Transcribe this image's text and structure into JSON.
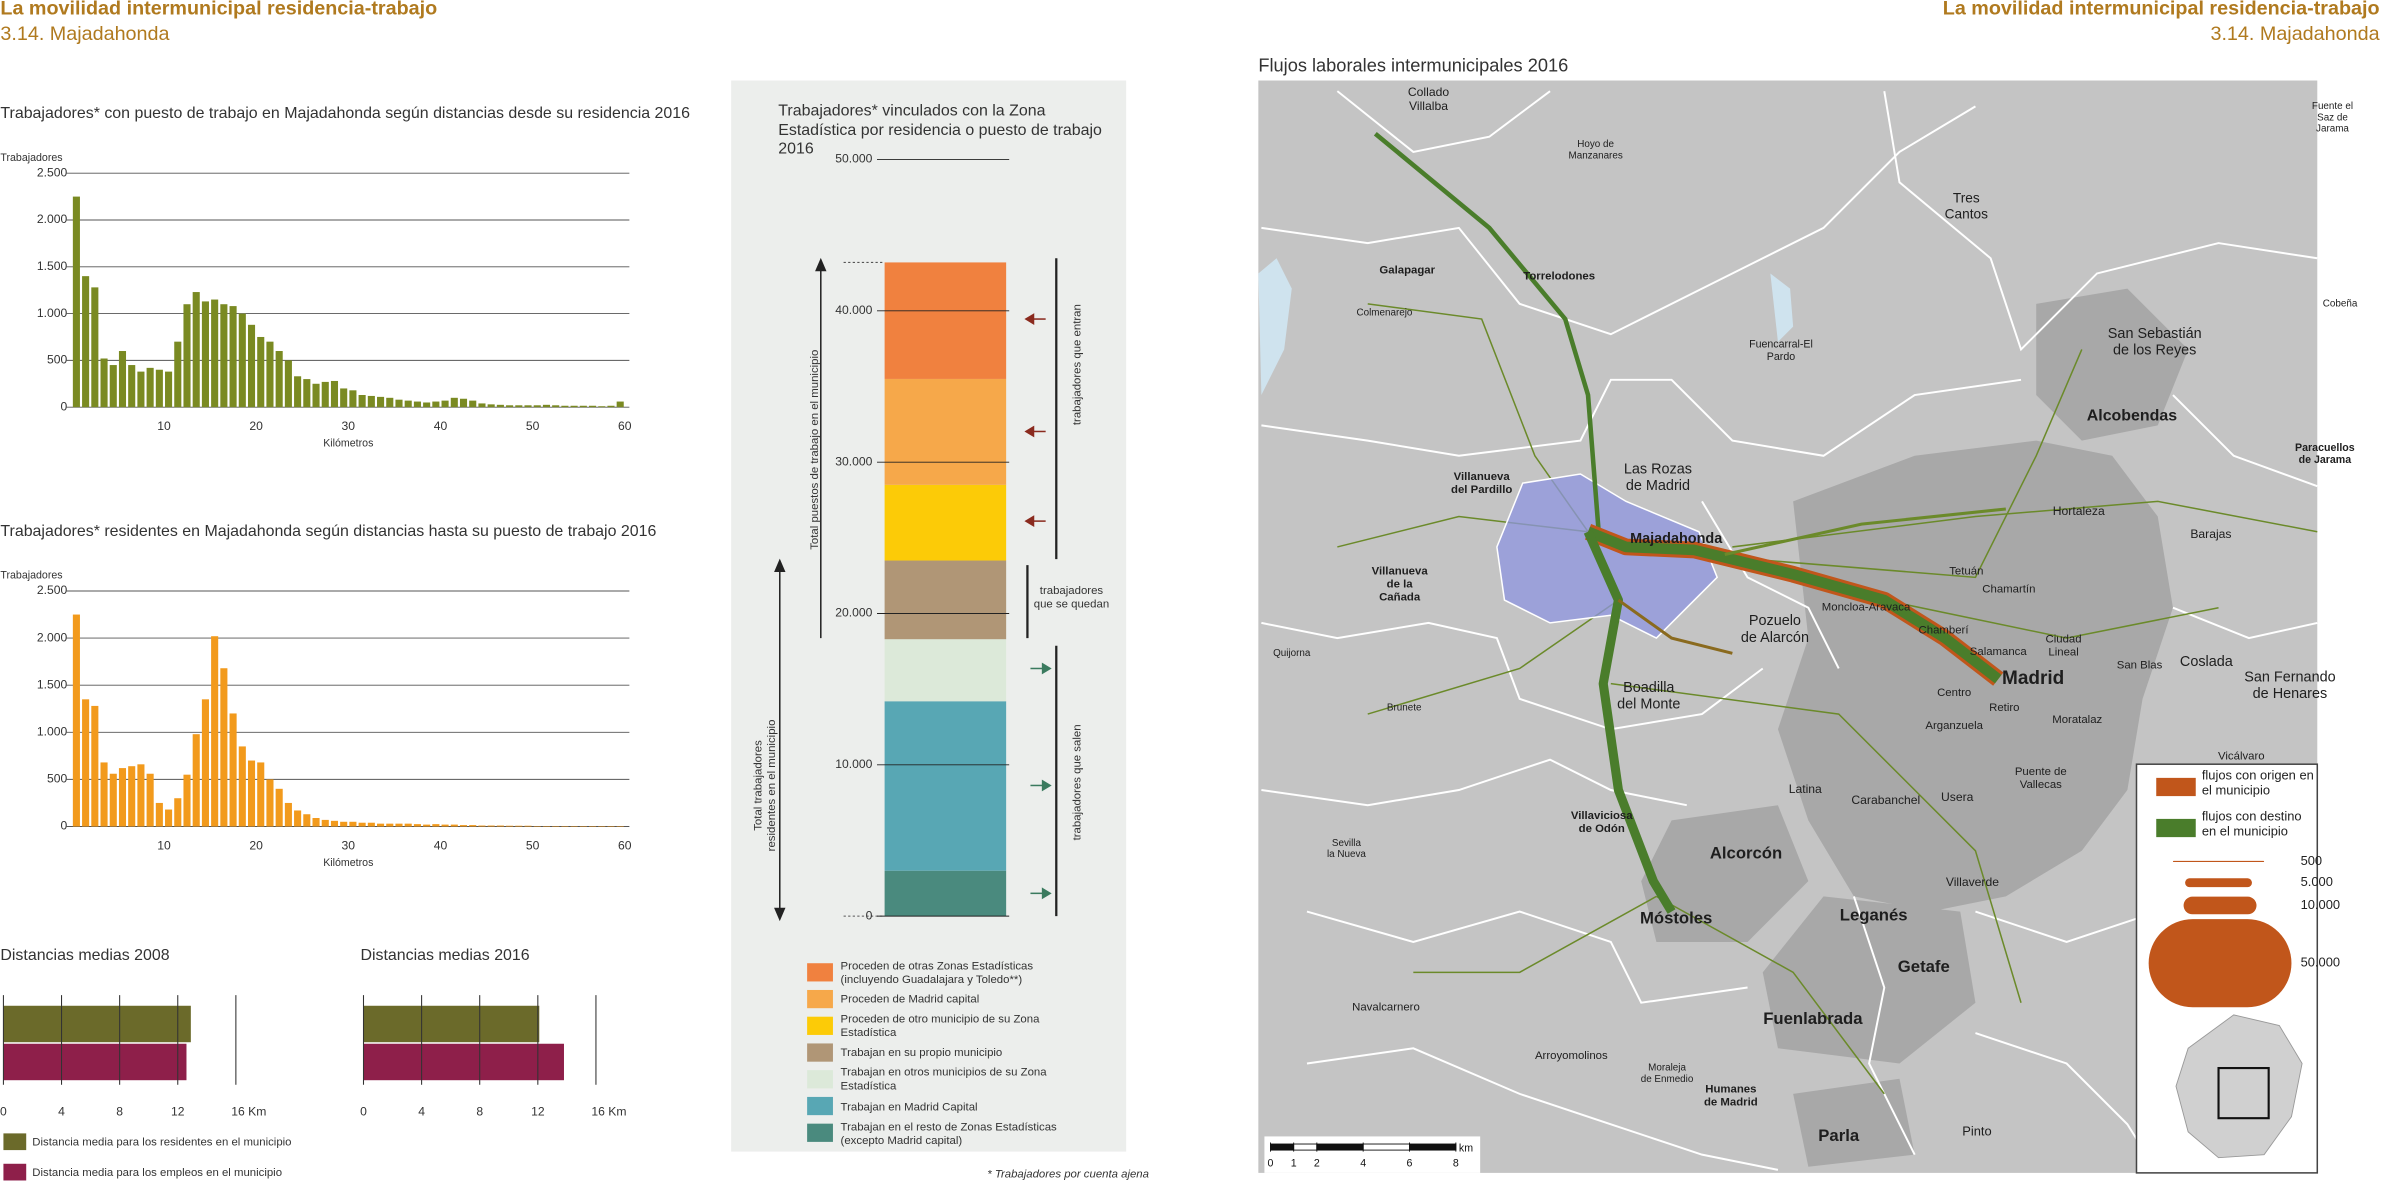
{
  "header": {
    "left_title": "La movilidad intermunicipal residencia-trabajo",
    "left_subtitle": "3.14. Majadahonda",
    "right_title": "La movilidad intermunicipal residencia-trabajo",
    "right_subtitle": "3.14. Majadahonda"
  },
  "chart_data": [
    {
      "type": "histogram",
      "title": "Trabajadores* con puesto de trabajo en Majadahonda según distancias  desde su residencia 2016",
      "y_label": "Trabajadores",
      "x_label": "Kilómetros",
      "color": "#7a8a22",
      "bins": [
        0,
        1,
        2,
        3,
        4,
        5,
        6,
        7,
        8,
        9,
        10,
        11,
        12,
        13,
        14,
        15,
        16,
        17,
        18,
        19,
        20,
        21,
        22,
        23,
        24,
        25,
        26,
        27,
        28,
        29,
        30,
        31,
        32,
        33,
        34,
        35,
        36,
        37,
        38,
        39,
        40,
        41,
        42,
        43,
        44,
        45,
        46,
        47,
        48,
        49,
        50,
        51,
        52,
        53,
        54,
        55,
        56,
        57,
        58,
        59,
        60
      ],
      "values": [
        2250,
        1400,
        1280,
        520,
        450,
        600,
        450,
        380,
        420,
        400,
        380,
        700,
        1100,
        1230,
        1130,
        1150,
        1100,
        1080,
        1000,
        880,
        750,
        700,
        600,
        500,
        330,
        300,
        250,
        270,
        280,
        200,
        180,
        130,
        120,
        110,
        100,
        80,
        70,
        60,
        50,
        60,
        70,
        100,
        90,
        70,
        40,
        30,
        25,
        20,
        20,
        20,
        20,
        25,
        20,
        15,
        15,
        15,
        15,
        10,
        15,
        60
      ],
      "xlim": [
        0,
        60
      ],
      "xticks": [
        10,
        20,
        30,
        40,
        50,
        60
      ],
      "ylim": [
        0,
        2500
      ],
      "yticks": [
        0,
        500,
        {
          "value": 1000,
          "label": "1.000"
        },
        {
          "value": 1500,
          "label": "1.500"
        },
        {
          "value": 2000,
          "label": "2.000"
        },
        {
          "value": 2500,
          "label": "2.500"
        }
      ],
      "grid": true
    },
    {
      "type": "histogram",
      "title": "Trabajadores* residentes en Majadahonda según distancias  hasta su puesto de trabajo 2016",
      "y_label": "Trabajadores",
      "x_label": "Kilómetros",
      "color": "#f29a1c",
      "bins": [
        0,
        1,
        2,
        3,
        4,
        5,
        6,
        7,
        8,
        9,
        10,
        11,
        12,
        13,
        14,
        15,
        16,
        17,
        18,
        19,
        20,
        21,
        22,
        23,
        24,
        25,
        26,
        27,
        28,
        29,
        30,
        31,
        32,
        33,
        34,
        35,
        36,
        37,
        38,
        39,
        40,
        41,
        42,
        43,
        44,
        45,
        46,
        47,
        48,
        49,
        50,
        51,
        52,
        53,
        54,
        55,
        56,
        57,
        58,
        59,
        60
      ],
      "values": [
        2250,
        1350,
        1280,
        680,
        560,
        620,
        640,
        660,
        560,
        250,
        180,
        300,
        550,
        980,
        1350,
        2020,
        1680,
        1200,
        850,
        700,
        680,
        500,
        400,
        250,
        170,
        130,
        90,
        70,
        60,
        50,
        50,
        40,
        40,
        30,
        30,
        30,
        30,
        25,
        20,
        25,
        20,
        20,
        15,
        15,
        10,
        10,
        10,
        8,
        8,
        8,
        5,
        5,
        5,
        5,
        5,
        5,
        5,
        5,
        5,
        5
      ],
      "xlim": [
        0,
        60
      ],
      "xticks": [
        10,
        20,
        30,
        40,
        50,
        60
      ],
      "ylim": [
        0,
        2500
      ],
      "yticks": [
        0,
        500,
        {
          "value": 1000,
          "label": "1.000"
        },
        {
          "value": 1500,
          "label": "1.500"
        },
        {
          "value": 2000,
          "label": "2.000"
        },
        {
          "value": 2500,
          "label": "2.500"
        }
      ],
      "grid": true
    },
    {
      "type": "hbar",
      "title": "Distancias medias 2008",
      "series": [
        {
          "name": "Distancia media para los residentes en el municipio",
          "color": "#6b6a2a",
          "values": [
            12.9
          ]
        },
        {
          "name": "Distancia media para los empleos en el municipio",
          "color": "#8e1f4a",
          "values": [
            12.6
          ]
        }
      ],
      "xlim": [
        0,
        16
      ],
      "xticks": [
        0,
        4,
        8,
        12,
        {
          "value": 16,
          "label": "16 Km"
        }
      ],
      "grid": true
    },
    {
      "type": "hbar",
      "title": "Distancias medias 2016",
      "series": [
        {
          "color": "#6b6a2a",
          "values": [
            12.1
          ]
        },
        {
          "color": "#8e1f4a",
          "values": [
            13.8
          ]
        }
      ],
      "xlim": [
        0,
        16
      ],
      "xticks": [
        0,
        4,
        8,
        12,
        {
          "value": 16,
          "label": "16 Km"
        }
      ],
      "grid": true
    },
    {
      "type": "stacked_bar",
      "title": "Trabajadores* vinculados con la Zona Estadística por residencia o puesto de trabajo 2016",
      "series": [
        {
          "name": "Proceden de otras Zonas Estadísticas (incluyendo Guadalajara y Toledo**)",
          "color": "#f0813f",
          "values": [
            7700
          ]
        },
        {
          "name": "Proceden de Madrid capital",
          "color": "#f6a84a",
          "values": [
            7000
          ]
        },
        {
          "name": "Proceden de otro municipio de su Zona Estadística",
          "color": "#fccb07",
          "values": [
            5000
          ]
        },
        {
          "name": "Trabajan en su propio municipio",
          "color": "#b09676",
          "values": [
            5200
          ]
        },
        {
          "name": "Trabajan en otros municipios de su Zona Estadística",
          "color": "#dce9d9",
          "values": [
            4100
          ]
        },
        {
          "name": "Trabajan en Madrid Capital",
          "color": "#58a7b4",
          "values": [
            11200
          ]
        },
        {
          "name": "Trabajan en el resto de Zonas Estadísticas (excepto Madrid capital)",
          "color": "#4a8a7e",
          "values": [
            3000
          ]
        }
      ],
      "ylim": [
        0,
        50000
      ],
      "yticks": [
        0,
        {
          "value": 10000,
          "label": "10.000"
        },
        {
          "value": 20000,
          "label": "20.000"
        },
        {
          "value": 30000,
          "label": "30.000"
        },
        {
          "value": 40000,
          "label": "40.000"
        },
        {
          "value": 50000,
          "label": "50.000"
        }
      ],
      "annotations": {
        "total_jobs": "Total puestos de trabajo en el municipio",
        "total_residents": "Total trabajadores residentes en el municipio",
        "entering": "trabajadores que entran",
        "staying": "trabajadores que se quedan",
        "leaving": "trabajadores que salen"
      },
      "footnote": "* Trabajadores por cuenta ajena"
    }
  ],
  "map": {
    "title": "Flujos laborales intermunicipales 2016",
    "places": [
      [
        "Collado",
        "Villalba"
      ],
      [
        "Hoyo de",
        "Manzanares"
      ],
      [
        "Fuente el",
        "Saz de",
        "Jarama"
      ],
      [
        "Tres",
        "Cantos"
      ],
      [
        "Galapagar"
      ],
      [
        "Torrelodones"
      ],
      [
        "Colmenarejo"
      ],
      [
        "Cobeña"
      ],
      [
        "Fuencarral-El",
        "Pardo"
      ],
      [
        "San Sebastián",
        "de los Reyes"
      ],
      [
        "Alcobendas"
      ],
      [
        "Paracuellos",
        "de Jarama"
      ],
      [
        "Villanueva",
        "del Pardillo"
      ],
      [
        "Las Rozas",
        "de Madrid"
      ],
      [
        "Majadahonda"
      ],
      [
        "Hortaleza"
      ],
      [
        "Barajas"
      ],
      [
        "Villanueva",
        "de la",
        "Cañada"
      ],
      [
        "Tetuán"
      ],
      [
        "Chamartín"
      ],
      [
        "Moncloa-Aravaca"
      ],
      [
        "Pozuelo",
        "de Alarcón"
      ],
      [
        "Chamberí"
      ],
      [
        "Ciudad",
        "Lineal"
      ],
      [
        "Salamanca"
      ],
      [
        "Quijorna"
      ],
      [
        "Madrid"
      ],
      [
        "San Blas"
      ],
      [
        "Coslada"
      ],
      [
        "San Fernando",
        "de Henares"
      ],
      [
        "Boadilla",
        "del Monte"
      ],
      [
        "Centro"
      ],
      [
        "Retiro"
      ],
      [
        "Brunete"
      ],
      [
        "Moratalaz"
      ],
      [
        "Arganzuela"
      ],
      [
        "Vicálvaro"
      ],
      [
        "Puente de",
        "Vallecas"
      ],
      [
        "Latina"
      ],
      [
        "Carabanchel"
      ],
      [
        "Usera"
      ],
      [
        "Villaviciosa",
        "de Odón"
      ],
      [
        "Sevilla",
        "la Nueva"
      ],
      [
        "Alcorcón"
      ],
      [
        "Villaverde"
      ],
      [
        "Móstoles"
      ],
      [
        "Leganés"
      ],
      [
        "Getafe"
      ],
      [
        "Navalcarnero"
      ],
      [
        "Fuenlabrada"
      ],
      [
        "Arroyomolinos"
      ],
      [
        "Moraleja",
        "de Enmedio"
      ],
      [
        "Humanes",
        "de Madrid"
      ],
      [
        "Parla"
      ],
      [
        "Pinto"
      ]
    ],
    "legend": {
      "items": [
        {
          "label": "flujos con origen en el municipio",
          "color": "#c1561b"
        },
        {
          "label": "flujos con destino en el municipio",
          "color": "#4a7d2b"
        }
      ],
      "sizes": [
        500,
        {
          "value": 5000,
          "label": "5.000"
        },
        {
          "value": 10000,
          "label": "10.000"
        },
        {
          "value": 50000,
          "label": "50.000"
        }
      ]
    },
    "scale": {
      "ticks": [
        0,
        1,
        2,
        4,
        6,
        8
      ],
      "unit": "km"
    }
  }
}
